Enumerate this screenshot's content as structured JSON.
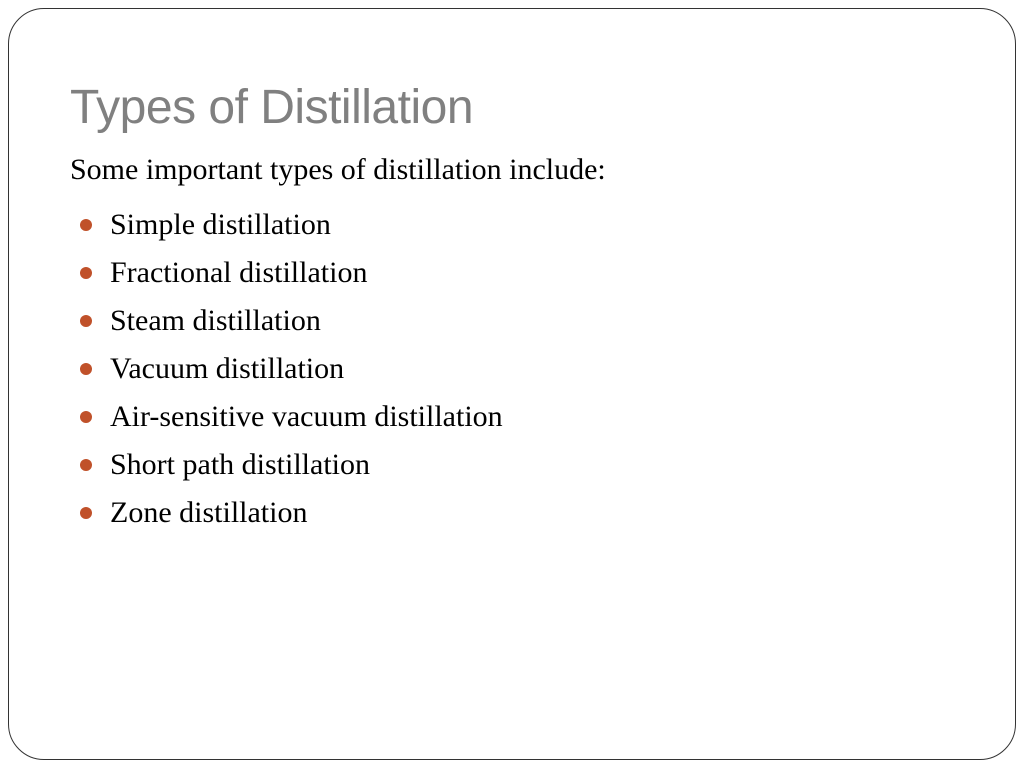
{
  "slide": {
    "title": "Types of Distillation",
    "intro": "Some important types of distillation include:",
    "bullets": [
      "Simple distillation",
      "Fractional distillation",
      "Steam distillation",
      "Vacuum distillation",
      "Air-sensitive vacuum distillation",
      "Short path distillation",
      "Zone distillation"
    ],
    "styling": {
      "title_color": "#808080",
      "title_fontsize": 48,
      "title_font": "Arial",
      "body_color": "#000000",
      "body_fontsize": 30,
      "body_font": "Georgia",
      "bullet_color": "#c0512a",
      "bullet_size": 12,
      "frame_border_color": "#333333",
      "frame_border_radius": 36,
      "background_color": "#ffffff"
    }
  }
}
